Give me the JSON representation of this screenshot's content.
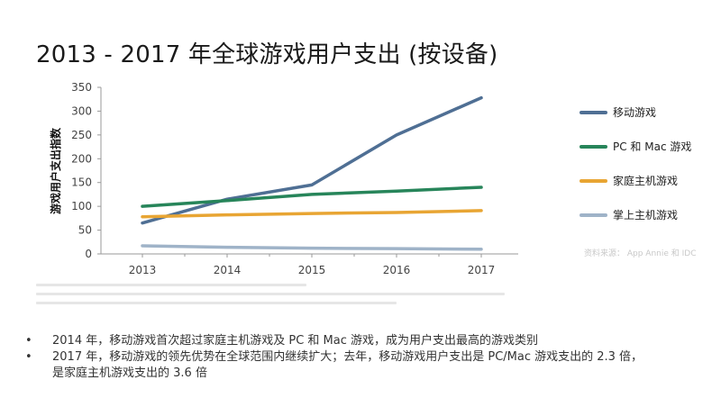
{
  "title": "2013 - 2017 年全球游戏用户支出 (按设备)",
  "chart_data": {
    "type": "line",
    "x": [
      "2013",
      "2014",
      "2015",
      "2016",
      "2017"
    ],
    "ylabel": "游戏用户支出指数",
    "ylim": [
      0,
      350
    ],
    "yticks": [
      0,
      50,
      100,
      150,
      200,
      250,
      300,
      350
    ],
    "grid": false,
    "legend": "right",
    "series": [
      {
        "name": "移动游戏",
        "color": "#4f6f94",
        "values": [
          65,
          115,
          145,
          250,
          328
        ]
      },
      {
        "name": "PC 和 Mac 游戏",
        "color": "#27855a",
        "values": [
          100,
          112,
          125,
          132,
          140
        ]
      },
      {
        "name": "家庭主机游戏",
        "color": "#e8a533",
        "values": [
          78,
          82,
          85,
          87,
          91
        ]
      },
      {
        "name": "掌上主机游戏",
        "color": "#9fb3c8",
        "values": [
          17,
          14,
          12,
          11,
          10
        ]
      }
    ]
  },
  "source_note": "资料来源： App Annie 和 IDC",
  "bullets": [
    {
      "line1": "2014 年，移动游戏首次超过家庭主机游戏及 PC 和 Mac 游戏，成为用户支出最高的游戏类别"
    },
    {
      "line1": "2017 年，移动游戏的领先优势在全球范围内继续扩大；去年，移动游戏用户支出是 PC/Mac 游戏支出的 2.3 倍，",
      "line2": "是家庭主机游戏支出的 3.6 倍"
    }
  ],
  "colors": {
    "axis": "#9a9a9a",
    "tick_text": "#444444",
    "footnote": "#c8c8c8"
  }
}
